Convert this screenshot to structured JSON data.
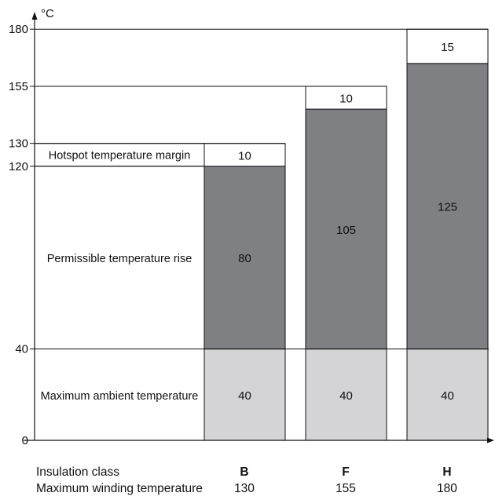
{
  "chart_data": {
    "type": "bar",
    "stacked": true,
    "y_unit": "°C",
    "ylim": [
      0,
      180
    ],
    "y_ticks": [
      0,
      40,
      120,
      130,
      155,
      180
    ],
    "x_row_labels": [
      "Insulation class",
      "Maximum winding temperature"
    ],
    "categories": [
      "B",
      "F",
      "H"
    ],
    "max_winding_temperature": [
      "130",
      "155",
      "180"
    ],
    "series": [
      {
        "name": "Maximum ambient temperature",
        "values": [
          40,
          40,
          40
        ],
        "color": "#d4d4d6"
      },
      {
        "name": "Permissible temperature rise",
        "values": [
          80,
          105,
          125
        ],
        "color": "#7f8084"
      },
      {
        "name": "Hotspot temperature margin",
        "values": [
          10,
          10,
          15
        ],
        "color": "#ffffff"
      }
    ],
    "grid": false,
    "legend": "inline-left"
  }
}
